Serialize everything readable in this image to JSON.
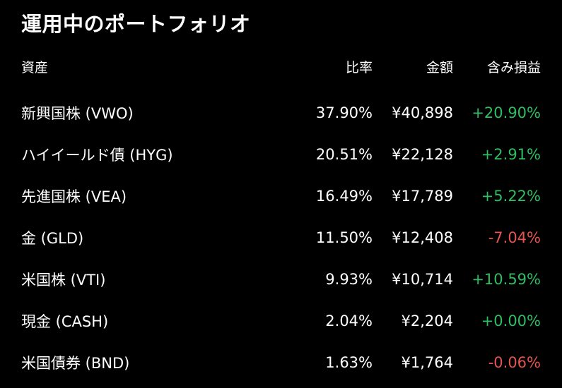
{
  "title": "運用中のポートフォリオ",
  "columns": {
    "asset": "資産",
    "ratio": "比率",
    "amount": "金額",
    "pl": "含み損益"
  },
  "rows": [
    {
      "name": "新興国株 (VWO)",
      "ratio": "37.90%",
      "amount": "¥40,898",
      "pl": "+20.90%",
      "pl_sign": "pos"
    },
    {
      "name": "ハイイールド債 (HYG)",
      "ratio": "20.51%",
      "amount": "¥22,128",
      "pl": "+2.91%",
      "pl_sign": "pos"
    },
    {
      "name": "先進国株 (VEA)",
      "ratio": "16.49%",
      "amount": "¥17,789",
      "pl": "+5.22%",
      "pl_sign": "pos"
    },
    {
      "name": "金 (GLD)",
      "ratio": "11.50%",
      "amount": "¥12,408",
      "pl": "-7.04%",
      "pl_sign": "neg"
    },
    {
      "name": "米国株 (VTI)",
      "ratio": "9.93%",
      "amount": "¥10,714",
      "pl": "+10.59%",
      "pl_sign": "pos"
    },
    {
      "name": "現金 (CASH)",
      "ratio": "2.04%",
      "amount": "¥2,204",
      "pl": "+0.00%",
      "pl_sign": "pos"
    },
    {
      "name": "米国債券 (BND)",
      "ratio": "1.63%",
      "amount": "¥1,764",
      "pl": "-0.06%",
      "pl_sign": "neg"
    }
  ],
  "colors": {
    "background": "#000000",
    "text": "#ffffff",
    "positive": "#2fbf63",
    "negative": "#e5544e"
  }
}
